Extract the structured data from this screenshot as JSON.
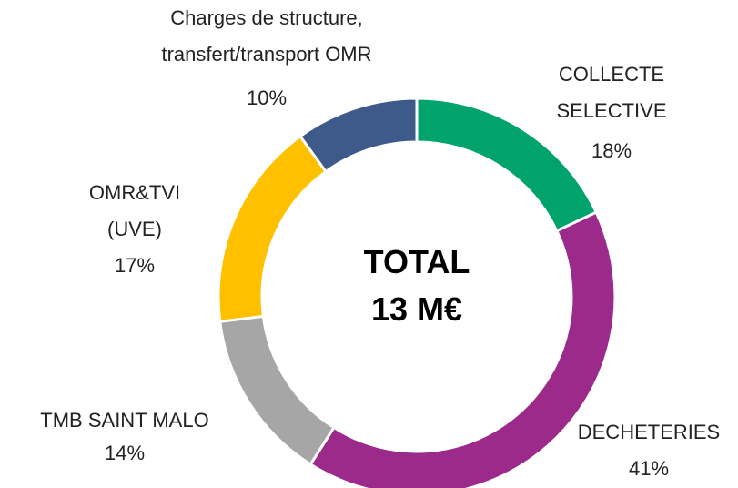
{
  "chart_data": {
    "type": "pie",
    "center_text": "TOTAL 13 M€",
    "categories": [
      "COLLECTE SELECTIVE",
      "DECHETERIES",
      "TMB SAINT MALO",
      "OMR&TVI (UVE)",
      "Charges de structure, transfert/transport OMR"
    ],
    "values": [
      18,
      41,
      14,
      17,
      10
    ],
    "value_labels": [
      "18%",
      "41%",
      "14%",
      "17%",
      "10%"
    ],
    "colors": [
      "#00a36c",
      "#9b2a8a",
      "#a6a6a6",
      "#ffc000",
      "#3e5a8a"
    ]
  }
}
